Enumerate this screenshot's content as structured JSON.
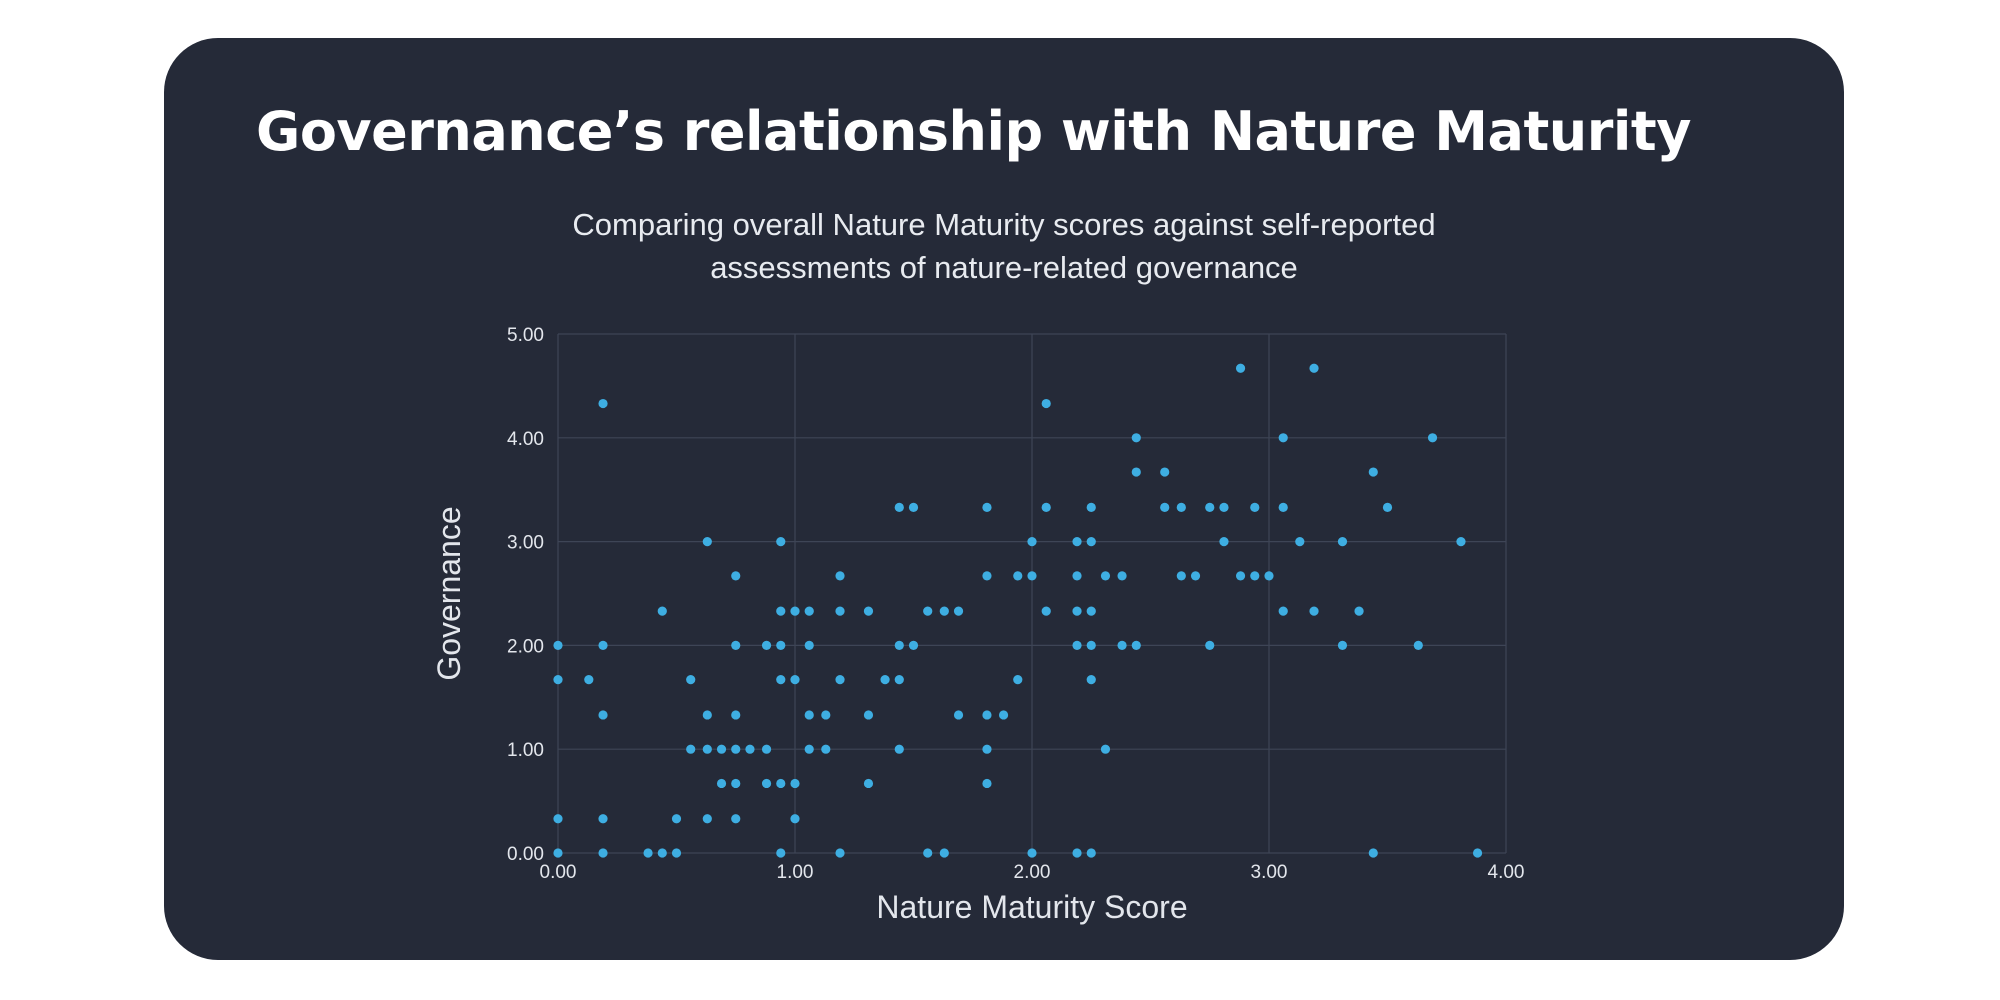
{
  "title": "Governance’s relationship with Nature Maturity",
  "subtitle": "Comparing overall Nature Maturity scores against self-reported assessments of nature-related governance",
  "colors": {
    "background": "#ffffff",
    "card": "#252a38",
    "point": "#3eaee2",
    "grid": "#3e4556",
    "text": "#e3e6ec"
  },
  "chart_data": {
    "type": "scatter",
    "xlabel": "Nature Maturity Score",
    "ylabel": "Governance",
    "xlim": [
      0,
      4
    ],
    "ylim": [
      0,
      5
    ],
    "x_ticks": [
      "0.00",
      "1.00",
      "2.00",
      "3.00",
      "4.00"
    ],
    "y_ticks": [
      "0.00",
      "1.00",
      "2.00",
      "3.00",
      "4.00",
      "5.00"
    ],
    "grid": true,
    "legend": "none",
    "points": [
      [
        0.0,
        0.0
      ],
      [
        0.0,
        0.33
      ],
      [
        0.0,
        1.67
      ],
      [
        0.0,
        2.0
      ],
      [
        0.13,
        1.67
      ],
      [
        0.19,
        0.0
      ],
      [
        0.19,
        0.33
      ],
      [
        0.19,
        1.33
      ],
      [
        0.19,
        2.0
      ],
      [
        0.19,
        4.33
      ],
      [
        0.38,
        0.0
      ],
      [
        0.44,
        0.0
      ],
      [
        0.44,
        2.33
      ],
      [
        0.5,
        0.0
      ],
      [
        0.5,
        0.33
      ],
      [
        0.56,
        1.0
      ],
      [
        0.56,
        1.67
      ],
      [
        0.63,
        0.33
      ],
      [
        0.63,
        1.0
      ],
      [
        0.63,
        1.33
      ],
      [
        0.63,
        3.0
      ],
      [
        0.69,
        0.67
      ],
      [
        0.69,
        1.0
      ],
      [
        0.75,
        0.33
      ],
      [
        0.75,
        0.67
      ],
      [
        0.75,
        1.0
      ],
      [
        0.75,
        1.33
      ],
      [
        0.75,
        2.0
      ],
      [
        0.75,
        2.67
      ],
      [
        0.81,
        1.0
      ],
      [
        0.88,
        0.67
      ],
      [
        0.88,
        1.0
      ],
      [
        0.88,
        2.0
      ],
      [
        0.94,
        0.0
      ],
      [
        0.94,
        0.67
      ],
      [
        0.94,
        1.67
      ],
      [
        0.94,
        2.0
      ],
      [
        0.94,
        2.33
      ],
      [
        0.94,
        3.0
      ],
      [
        1.0,
        0.33
      ],
      [
        1.0,
        0.67
      ],
      [
        1.0,
        1.67
      ],
      [
        1.0,
        2.33
      ],
      [
        1.06,
        1.0
      ],
      [
        1.06,
        1.33
      ],
      [
        1.06,
        2.0
      ],
      [
        1.06,
        2.33
      ],
      [
        1.13,
        1.0
      ],
      [
        1.13,
        1.33
      ],
      [
        1.19,
        0.0
      ],
      [
        1.19,
        1.67
      ],
      [
        1.19,
        2.33
      ],
      [
        1.19,
        2.67
      ],
      [
        1.31,
        0.67
      ],
      [
        1.31,
        1.33
      ],
      [
        1.31,
        2.33
      ],
      [
        1.38,
        1.67
      ],
      [
        1.44,
        1.0
      ],
      [
        1.44,
        1.67
      ],
      [
        1.44,
        2.0
      ],
      [
        1.44,
        3.33
      ],
      [
        1.5,
        2.0
      ],
      [
        1.5,
        3.33
      ],
      [
        1.56,
        0.0
      ],
      [
        1.56,
        2.33
      ],
      [
        1.63,
        0.0
      ],
      [
        1.63,
        2.33
      ],
      [
        1.69,
        1.33
      ],
      [
        1.69,
        2.33
      ],
      [
        1.81,
        0.67
      ],
      [
        1.81,
        1.0
      ],
      [
        1.81,
        1.33
      ],
      [
        1.81,
        2.67
      ],
      [
        1.81,
        3.33
      ],
      [
        1.88,
        1.33
      ],
      [
        1.94,
        1.67
      ],
      [
        1.94,
        2.67
      ],
      [
        2.0,
        0.0
      ],
      [
        2.0,
        2.67
      ],
      [
        2.0,
        3.0
      ],
      [
        2.06,
        2.33
      ],
      [
        2.06,
        3.33
      ],
      [
        2.06,
        4.33
      ],
      [
        2.19,
        0.0
      ],
      [
        2.19,
        2.0
      ],
      [
        2.19,
        2.33
      ],
      [
        2.19,
        2.67
      ],
      [
        2.19,
        3.0
      ],
      [
        2.25,
        0.0
      ],
      [
        2.25,
        1.67
      ],
      [
        2.25,
        2.0
      ],
      [
        2.25,
        2.33
      ],
      [
        2.25,
        3.0
      ],
      [
        2.25,
        3.33
      ],
      [
        2.31,
        1.0
      ],
      [
        2.31,
        2.67
      ],
      [
        2.38,
        2.0
      ],
      [
        2.38,
        2.67
      ],
      [
        2.44,
        2.0
      ],
      [
        2.44,
        3.67
      ],
      [
        2.44,
        4.0
      ],
      [
        2.56,
        3.33
      ],
      [
        2.56,
        3.67
      ],
      [
        2.63,
        2.67
      ],
      [
        2.63,
        3.33
      ],
      [
        2.69,
        2.67
      ],
      [
        2.75,
        2.0
      ],
      [
        2.75,
        3.33
      ],
      [
        2.81,
        3.0
      ],
      [
        2.81,
        3.33
      ],
      [
        2.88,
        2.67
      ],
      [
        2.88,
        4.67
      ],
      [
        2.94,
        2.67
      ],
      [
        2.94,
        3.33
      ],
      [
        3.0,
        2.67
      ],
      [
        3.06,
        2.33
      ],
      [
        3.06,
        3.33
      ],
      [
        3.06,
        4.0
      ],
      [
        3.13,
        3.0
      ],
      [
        3.19,
        2.33
      ],
      [
        3.19,
        4.67
      ],
      [
        3.31,
        2.0
      ],
      [
        3.31,
        3.0
      ],
      [
        3.38,
        2.33
      ],
      [
        3.44,
        0.0
      ],
      [
        3.44,
        3.67
      ],
      [
        3.5,
        3.33
      ],
      [
        3.63,
        2.0
      ],
      [
        3.69,
        4.0
      ],
      [
        3.81,
        3.0
      ],
      [
        3.88,
        0.0
      ]
    ]
  }
}
